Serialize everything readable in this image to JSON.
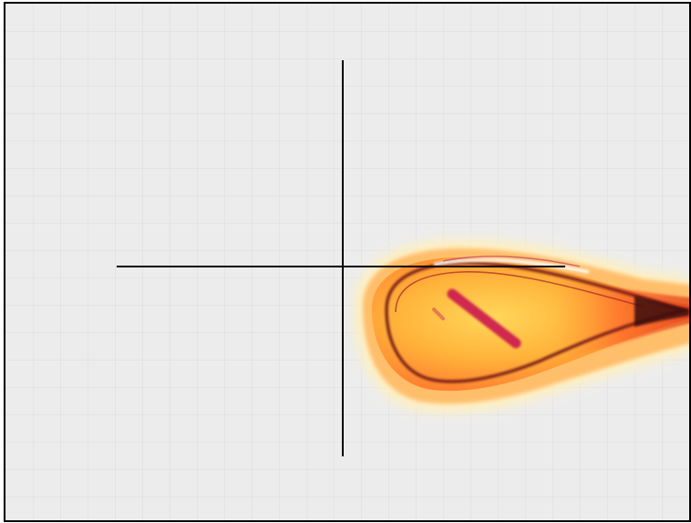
{
  "image": {
    "subject": "micrograph-droplet",
    "colors": {
      "background": "#ececec",
      "frame": "#000000",
      "crosshair": "#000000",
      "halo_outer": "#fff3c4",
      "halo_mid": "#ffc36e",
      "body_core": "#ffb23a",
      "body_edge": "#ff6a2a",
      "rim": "#7a1a1a",
      "streak": "#c8104f",
      "highlight": "#ffffff"
    }
  }
}
